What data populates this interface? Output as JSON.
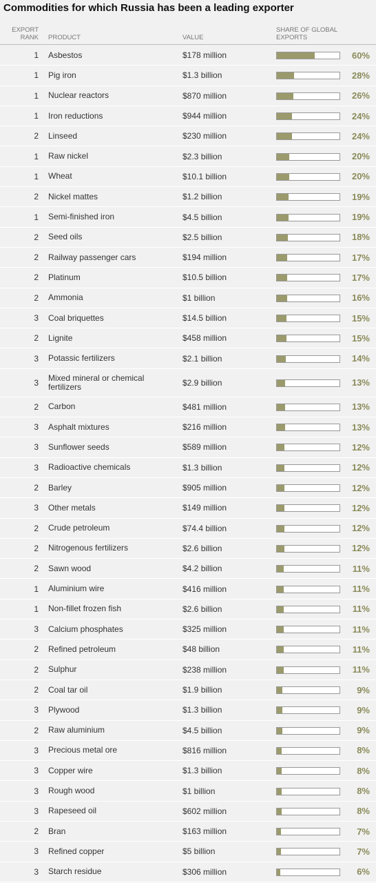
{
  "title": "Commodities for which Russia has been a leading exporter",
  "header": {
    "rank": "EXPORT RANK",
    "product": "PRODUCT",
    "value": "VALUE",
    "share": "SHARE OF GLOBAL EXPORTS"
  },
  "bar_color": "#9a9a6c",
  "share_max": 100,
  "table": {
    "rows": [
      {
        "rank": 1,
        "product": "Asbestos",
        "value": "$178 million",
        "share": 60,
        "share_label": "60%"
      },
      {
        "rank": 1,
        "product": "Pig iron",
        "value": "$1.3 billion",
        "share": 28,
        "share_label": "28%"
      },
      {
        "rank": 1,
        "product": "Nuclear reactors",
        "value": "$870 million",
        "share": 26,
        "share_label": "26%"
      },
      {
        "rank": 1,
        "product": "Iron reductions",
        "value": "$944 million",
        "share": 24,
        "share_label": "24%"
      },
      {
        "rank": 2,
        "product": "Linseed",
        "value": "$230 million",
        "share": 24,
        "share_label": "24%"
      },
      {
        "rank": 1,
        "product": "Raw nickel",
        "value": "$2.3 billion",
        "share": 20,
        "share_label": "20%"
      },
      {
        "rank": 1,
        "product": "Wheat",
        "value": "$10.1 billion",
        "share": 20,
        "share_label": "20%"
      },
      {
        "rank": 2,
        "product": "Nickel mattes",
        "value": "$1.2 billion",
        "share": 19,
        "share_label": "19%"
      },
      {
        "rank": 1,
        "product": "Semi-finished iron",
        "value": "$4.5 billion",
        "share": 19,
        "share_label": "19%"
      },
      {
        "rank": 2,
        "product": "Seed oils",
        "value": "$2.5 billion",
        "share": 18,
        "share_label": "18%"
      },
      {
        "rank": 2,
        "product": "Railway passenger cars",
        "value": "$194 million",
        "share": 17,
        "share_label": "17%"
      },
      {
        "rank": 2,
        "product": "Platinum",
        "value": "$10.5 billion",
        "share": 17,
        "share_label": "17%"
      },
      {
        "rank": 2,
        "product": "Ammonia",
        "value": "$1 billion",
        "share": 16,
        "share_label": "16%"
      },
      {
        "rank": 3,
        "product": "Coal briquettes",
        "value": "$14.5 billion",
        "share": 15,
        "share_label": "15%"
      },
      {
        "rank": 2,
        "product": "Lignite",
        "value": "$458 million",
        "share": 15,
        "share_label": "15%"
      },
      {
        "rank": 3,
        "product": "Potassic fertilizers",
        "value": "$2.1 billion",
        "share": 14,
        "share_label": "14%"
      },
      {
        "rank": 3,
        "product": "Mixed mineral or chemical fertilizers",
        "value": "$2.9 billion",
        "share": 13,
        "share_label": "13%"
      },
      {
        "rank": 2,
        "product": "Carbon",
        "value": "$481 million",
        "share": 13,
        "share_label": "13%"
      },
      {
        "rank": 3,
        "product": "Asphalt mixtures",
        "value": "$216 million",
        "share": 13,
        "share_label": "13%"
      },
      {
        "rank": 3,
        "product": "Sunflower seeds",
        "value": "$589 million",
        "share": 12,
        "share_label": "12%"
      },
      {
        "rank": 3,
        "product": "Radioactive chemicals",
        "value": "$1.3 billion",
        "share": 12,
        "share_label": "12%"
      },
      {
        "rank": 2,
        "product": "Barley",
        "value": "$905 million",
        "share": 12,
        "share_label": "12%"
      },
      {
        "rank": 3,
        "product": "Other metals",
        "value": "$149 million",
        "share": 12,
        "share_label": "12%"
      },
      {
        "rank": 2,
        "product": "Crude petroleum",
        "value": "$74.4 billion",
        "share": 12,
        "share_label": "12%"
      },
      {
        "rank": 2,
        "product": "Nitrogenous fertilizers",
        "value": "$2.6 billion",
        "share": 12,
        "share_label": "12%"
      },
      {
        "rank": 2,
        "product": "Sawn wood",
        "value": "$4.2 billion",
        "share": 11,
        "share_label": "11%"
      },
      {
        "rank": 1,
        "product": "Aluminium wire",
        "value": "$416 million",
        "share": 11,
        "share_label": "11%"
      },
      {
        "rank": 1,
        "product": "Non-fillet frozen fish",
        "value": "$2.6 billion",
        "share": 11,
        "share_label": "11%"
      },
      {
        "rank": 3,
        "product": "Calcium phosphates",
        "value": "$325 million",
        "share": 11,
        "share_label": "11%"
      },
      {
        "rank": 2,
        "product": "Refined petroleum",
        "value": "$48 billion",
        "share": 11,
        "share_label": "11%"
      },
      {
        "rank": 2,
        "product": "Sulphur",
        "value": "$238 million",
        "share": 11,
        "share_label": "11%"
      },
      {
        "rank": 2,
        "product": "Coal tar oil",
        "value": "$1.9 billion",
        "share": 9,
        "share_label": "9%"
      },
      {
        "rank": 3,
        "product": "Plywood",
        "value": "$1.3 billion",
        "share": 9,
        "share_label": "9%"
      },
      {
        "rank": 2,
        "product": "Raw aluminium",
        "value": "$4.5 billion",
        "share": 9,
        "share_label": "9%"
      },
      {
        "rank": 3,
        "product": "Precious metal ore",
        "value": "$816 million",
        "share": 8,
        "share_label": "8%"
      },
      {
        "rank": 3,
        "product": "Copper wire",
        "value": "$1.3 billion",
        "share": 8,
        "share_label": "8%"
      },
      {
        "rank": 3,
        "product": "Rough wood",
        "value": "$1 billion",
        "share": 8,
        "share_label": "8%"
      },
      {
        "rank": 3,
        "product": "Rapeseed oil",
        "value": "$602 million",
        "share": 8,
        "share_label": "8%"
      },
      {
        "rank": 2,
        "product": "Bran",
        "value": "$163 million",
        "share": 7,
        "share_label": "7%"
      },
      {
        "rank": 3,
        "product": "Refined copper",
        "value": "$5 billion",
        "share": 7,
        "share_label": "7%"
      },
      {
        "rank": 3,
        "product": "Starch residue",
        "value": "$306 million",
        "share": 6,
        "share_label": "6%"
      }
    ]
  }
}
